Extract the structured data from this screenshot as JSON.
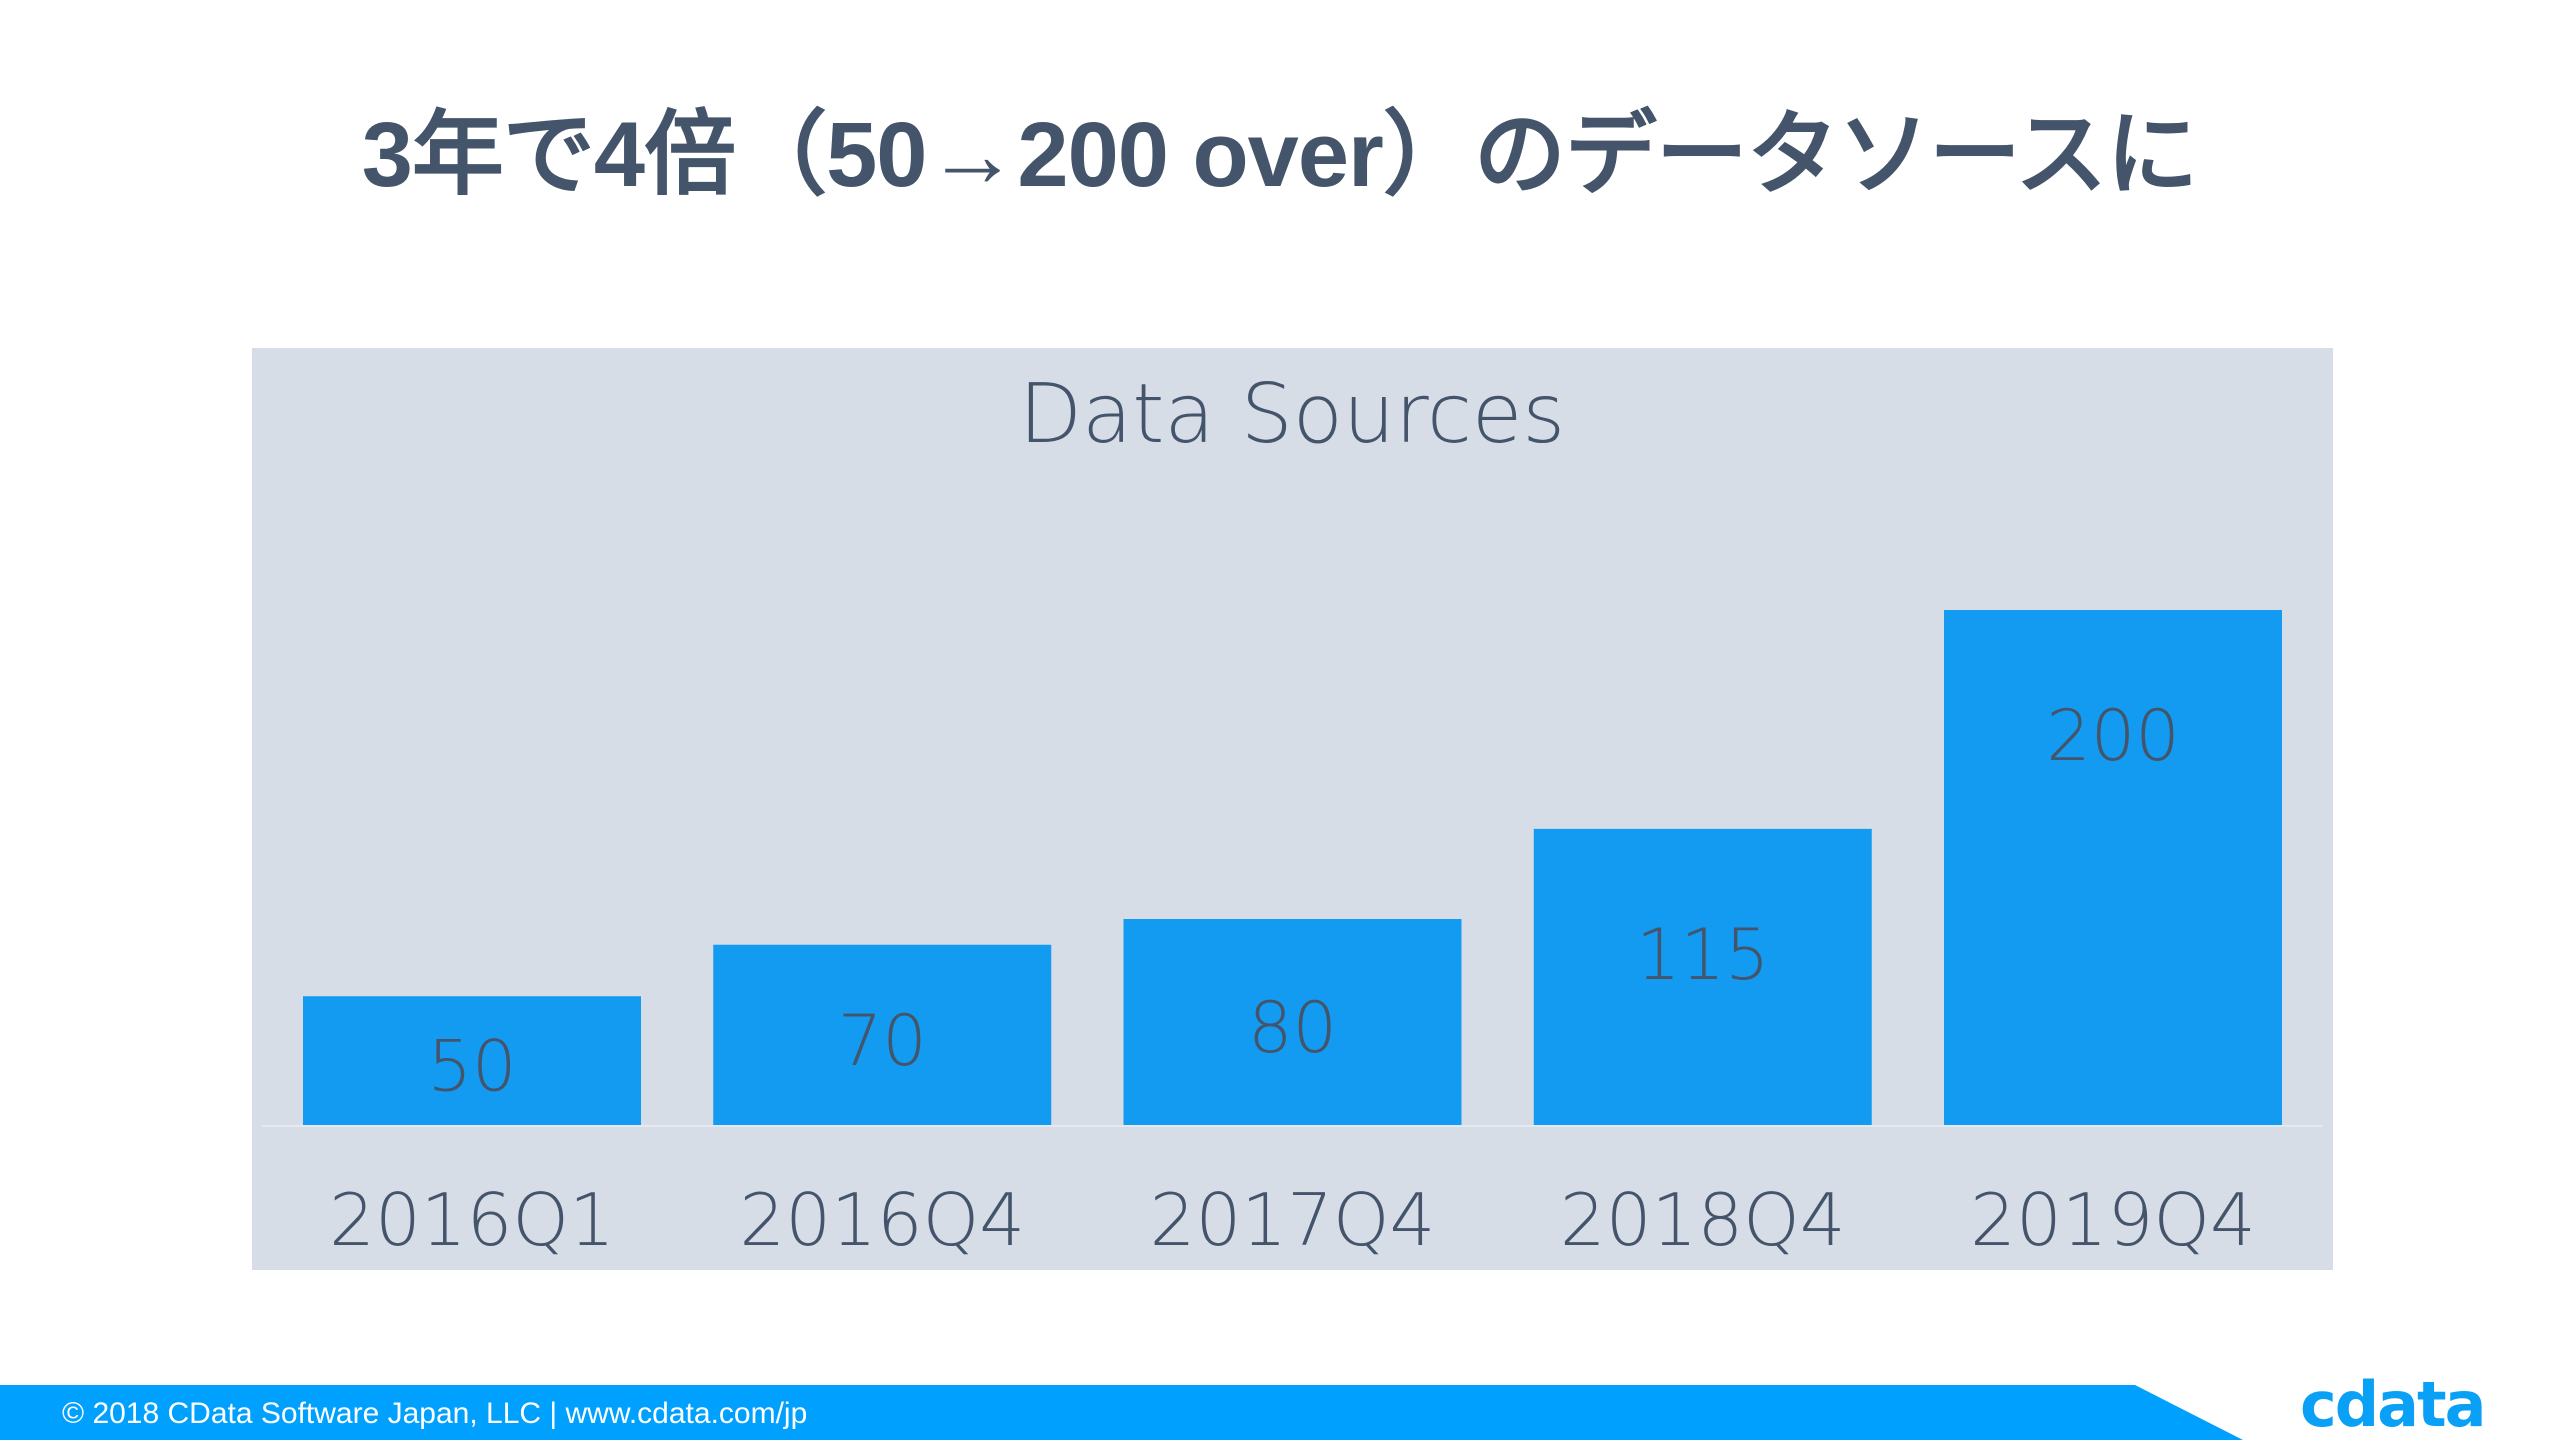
{
  "slide": {
    "title": "3年で4倍（50→200 over）のデータソースに",
    "footer_text": "© 2018 CData Software Japan, LLC |  www.cdata.com/jp",
    "logo_text": "cdata"
  },
  "colors": {
    "bar": "#129bf0",
    "panel": "#d6dde7",
    "text": "#44546a",
    "footer": "#00a0ff"
  },
  "chart_data": {
    "type": "bar",
    "title": "Data Sources",
    "categories": [
      "2016Q1",
      "2016Q4",
      "2017Q4",
      "2018Q4",
      "2019Q4"
    ],
    "values": [
      50,
      70,
      80,
      115,
      200
    ],
    "data_labels": [
      "50",
      "70",
      "80",
      "115",
      "200"
    ],
    "xlabel": "",
    "ylabel": "",
    "ylim": [
      0,
      200
    ],
    "grid": false,
    "legend": "none"
  }
}
